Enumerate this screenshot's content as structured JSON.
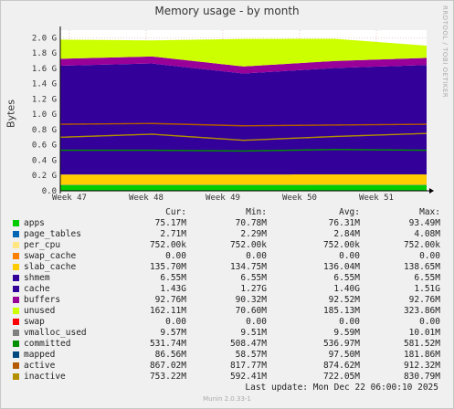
{
  "title": "Memory usage - by month",
  "side_label": "RRDTOOL / TOBI OETIKER",
  "footer_left": "Munin 2.0.33-1",
  "last_update": "Last update:  Mon Dec 22 06:00:10 2025",
  "legend_headers": {
    "cur": "Cur:",
    "min": "Min:",
    "avg": "Avg:",
    "max": "Max:"
  },
  "legend": [
    {
      "name": "apps",
      "color": "#00cc00",
      "cur": "75.17M",
      "min": "70.78M",
      "avg": "76.31M",
      "max": "93.49M"
    },
    {
      "name": "page_tables",
      "color": "#0066b3",
      "cur": "2.71M",
      "min": "2.29M",
      "avg": "2.84M",
      "max": "4.08M"
    },
    {
      "name": "per_cpu",
      "color": "#ffe680",
      "cur": "752.00k",
      "min": "752.00k",
      "avg": "752.00k",
      "max": "752.00k"
    },
    {
      "name": "swap_cache",
      "color": "#ff8000",
      "cur": "0.00",
      "min": "0.00",
      "avg": "0.00",
      "max": "0.00"
    },
    {
      "name": "slab_cache",
      "color": "#ffcc00",
      "cur": "135.70M",
      "min": "134.75M",
      "avg": "136.04M",
      "max": "138.65M"
    },
    {
      "name": "shmem",
      "color": "#330099",
      "cur": "6.55M",
      "min": "6.55M",
      "avg": "6.55M",
      "max": "6.55M"
    },
    {
      "name": "cache",
      "color": "#330099",
      "cur": "1.43G",
      "min": "1.27G",
      "avg": "1.40G",
      "max": "1.51G"
    },
    {
      "name": "buffers",
      "color": "#990099",
      "cur": "92.76M",
      "min": "90.32M",
      "avg": "92.52M",
      "max": "92.76M"
    },
    {
      "name": "unused",
      "color": "#ccff00",
      "cur": "162.11M",
      "min": "70.60M",
      "avg": "185.13M",
      "max": "323.86M"
    },
    {
      "name": "swap",
      "color": "#ff0000",
      "cur": "0.00",
      "min": "0.00",
      "avg": "0.00",
      "max": "0.00"
    },
    {
      "name": "vmalloc_used",
      "color": "#808080",
      "cur": "9.57M",
      "min": "9.51M",
      "avg": "9.59M",
      "max": "10.01M"
    },
    {
      "name": "committed",
      "color": "#008f00",
      "cur": "531.74M",
      "min": "508.47M",
      "avg": "536.97M",
      "max": "581.52M"
    },
    {
      "name": "mapped",
      "color": "#00487d",
      "cur": "86.56M",
      "min": "58.57M",
      "avg": "97.50M",
      "max": "181.86M"
    },
    {
      "name": "active",
      "color": "#b35a00",
      "cur": "867.02M",
      "min": "817.77M",
      "avg": "874.62M",
      "max": "912.32M"
    },
    {
      "name": "inactive",
      "color": "#b38f00",
      "cur": "753.22M",
      "min": "592.41M",
      "avg": "722.05M",
      "max": "830.79M"
    }
  ],
  "chart_data": {
    "type": "area",
    "title": "Memory usage - by month",
    "ylabel": "Bytes",
    "ylim": [
      0,
      2.1
    ],
    "y_unit": "G",
    "yticks": [
      "0.0",
      "0.2 G",
      "0.4 G",
      "0.6 G",
      "0.8 G",
      "1.0 G",
      "1.2 G",
      "1.4 G",
      "1.6 G",
      "1.8 G",
      "2.0 G"
    ],
    "x": [
      "Week 47",
      "Week 48",
      "Week 49",
      "Week 50",
      "Week 51"
    ],
    "grid": true,
    "stacked": true,
    "series": [
      {
        "name": "apps",
        "color": "#00cc00",
        "values": [
          0.075,
          0.075,
          0.074,
          0.076,
          0.075
        ]
      },
      {
        "name": "page_tables",
        "color": "#0066b3",
        "values": [
          0.003,
          0.003,
          0.003,
          0.003,
          0.003
        ]
      },
      {
        "name": "slab_cache",
        "color": "#ffcc00",
        "values": [
          0.136,
          0.136,
          0.136,
          0.136,
          0.136
        ]
      },
      {
        "name": "cache",
        "color": "#330099",
        "values": [
          1.42,
          1.45,
          1.32,
          1.39,
          1.43
        ]
      },
      {
        "name": "buffers",
        "color": "#990099",
        "values": [
          0.092,
          0.092,
          0.092,
          0.092,
          0.093
        ]
      },
      {
        "name": "unused",
        "color": "#ccff00",
        "values": [
          0.25,
          0.21,
          0.36,
          0.29,
          0.16
        ]
      }
    ],
    "lines": [
      {
        "name": "committed",
        "color": "#008f00",
        "values": [
          0.53,
          0.53,
          0.52,
          0.54,
          0.53
        ]
      },
      {
        "name": "active",
        "color": "#b35a00",
        "values": [
          0.87,
          0.88,
          0.85,
          0.86,
          0.87
        ]
      },
      {
        "name": "inactive",
        "color": "#b38f00",
        "values": [
          0.7,
          0.74,
          0.66,
          0.71,
          0.75
        ]
      }
    ]
  }
}
